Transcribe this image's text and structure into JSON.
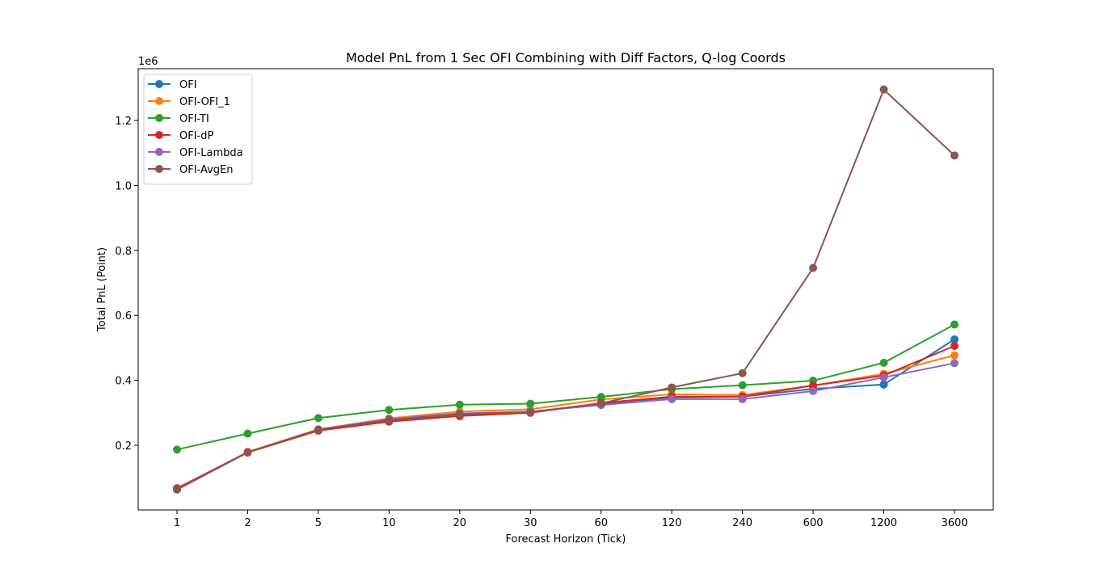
{
  "chart_data": {
    "type": "line",
    "title": "Model PnL from 1 Sec OFI Combining with Diff Factors, Q-log Coords",
    "xlabel": "Forecast Horizon (Tick)",
    "ylabel": "Total PnL (Point)",
    "y_offset_label": "1e6",
    "categories": [
      "1",
      "2",
      "5",
      "10",
      "20",
      "30",
      "60",
      "120",
      "240",
      "600",
      "1200",
      "3600"
    ],
    "ylim": [
      0.0,
      1.35
    ],
    "yticks": [
      0.2,
      0.4,
      0.6,
      0.8,
      1.0,
      1.2
    ],
    "ytick_labels": [
      "0.2",
      "0.4",
      "0.6",
      "0.8",
      "1.0",
      "1.2"
    ],
    "legend_position": "upper-left",
    "series": [
      {
        "name": "OFI",
        "color": "#1f77b4",
        "values": [
          0.065,
          0.178,
          0.246,
          0.276,
          0.295,
          0.303,
          0.327,
          0.347,
          0.35,
          0.374,
          0.387,
          0.526
        ]
      },
      {
        "name": "OFI-OFI_1",
        "color": "#ff7f0e",
        "values": [
          0.066,
          0.18,
          0.249,
          0.283,
          0.304,
          0.311,
          0.341,
          0.357,
          0.355,
          0.384,
          0.42,
          0.477
        ]
      },
      {
        "name": "OFI-TI",
        "color": "#2ca02c",
        "values": [
          0.187,
          0.236,
          0.284,
          0.309,
          0.325,
          0.328,
          0.349,
          0.373,
          0.385,
          0.399,
          0.454,
          0.572
        ]
      },
      {
        "name": "OFI-dP",
        "color": "#d62728",
        "values": [
          0.068,
          0.178,
          0.245,
          0.273,
          0.29,
          0.3,
          0.33,
          0.35,
          0.35,
          0.384,
          0.415,
          0.506
        ]
      },
      {
        "name": "OFI-Lambda",
        "color": "#9467bd",
        "values": [
          0.064,
          0.178,
          0.249,
          0.281,
          0.298,
          0.304,
          0.324,
          0.342,
          0.342,
          0.367,
          0.409,
          0.453
        ]
      },
      {
        "name": "OFI-AvgEn",
        "color": "#8c564b",
        "values": [
          0.064,
          0.178,
          0.248,
          0.278,
          0.296,
          0.302,
          0.329,
          0.378,
          0.422,
          0.746,
          1.295,
          1.092
        ]
      }
    ]
  }
}
